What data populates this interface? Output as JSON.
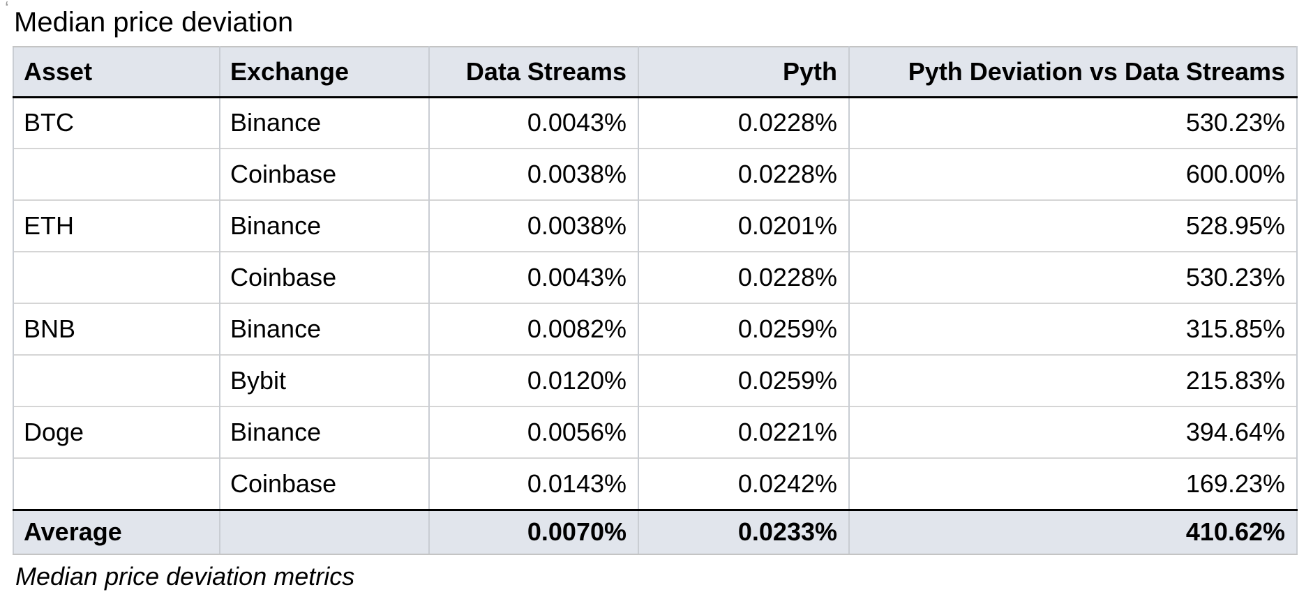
{
  "page": {
    "title": "Median price deviation",
    "caption": "Median price deviation metrics",
    "stray_mark": "‘"
  },
  "colors": {
    "header_bg": "#e1e5ec",
    "grid_line": "#c9cdd3",
    "row_line": "#d5d5d5",
    "strong_line": "#000000",
    "text": "#000000",
    "page_bg": "#ffffff"
  },
  "chart_data": {
    "type": "table",
    "title": "Median price deviation",
    "caption": "Median price deviation metrics",
    "columns": [
      "Asset",
      "Exchange",
      "Data Streams",
      "Pyth",
      "Pyth Deviation vs Data Streams"
    ],
    "column_alignments": [
      "left",
      "left",
      "right",
      "right",
      "right"
    ],
    "rows": [
      [
        "BTC",
        "Binance",
        "0.0043%",
        "0.0228%",
        "530.23%"
      ],
      [
        "",
        "Coinbase",
        "0.0038%",
        "0.0228%",
        "600.00%"
      ],
      [
        "ETH",
        "Binance",
        "0.0038%",
        "0.0201%",
        "528.95%"
      ],
      [
        "",
        "Coinbase",
        "0.0043%",
        "0.0228%",
        "530.23%"
      ],
      [
        "BNB",
        "Binance",
        "0.0082%",
        "0.0259%",
        "315.85%"
      ],
      [
        "",
        "Bybit",
        "0.0120%",
        "0.0259%",
        "215.83%"
      ],
      [
        "Doge",
        "Binance",
        "0.0056%",
        "0.0221%",
        "394.64%"
      ],
      [
        "",
        "Coinbase",
        "0.0143%",
        "0.0242%",
        "169.23%"
      ]
    ],
    "footer_row": [
      "Average",
      "",
      "0.0070%",
      "0.0233%",
      "410.62%"
    ]
  }
}
